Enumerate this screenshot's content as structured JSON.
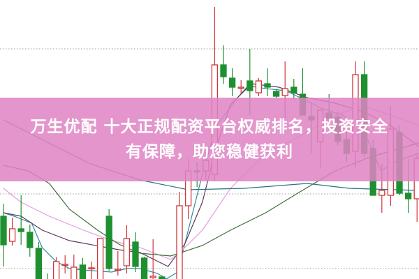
{
  "banner": {
    "title_line1": "万生优配 十大正规配资平台权威排名，投资安全",
    "title_line2": "有保障，助您稳健获利"
  },
  "chart_data": {
    "type": "candlestick",
    "title": "",
    "xlabel": "",
    "ylabel": "",
    "ylim": [
      0,
      400
    ],
    "grid": "horizontal dotted",
    "colors": {
      "up": "#d0363a",
      "down": "#1e9030",
      "grid": "#9a9a9a",
      "banner": "#de84c4"
    },
    "candles_ohlc": [
      [
        90,
        108,
        18,
        49
      ],
      [
        54,
        88,
        48,
        72
      ],
      [
        72,
        120,
        49,
        68
      ],
      [
        67,
        78,
        32,
        45
      ],
      [
        44,
        53,
        -10,
        -8
      ],
      [
        -8,
        8,
        -20,
        -15
      ],
      [
        -5,
        31,
        -10,
        25
      ],
      [
        20,
        34,
        8,
        21
      ],
      [
        -5,
        35,
        -10,
        17
      ],
      [
        20,
        30,
        -10,
        -5
      ],
      [
        15,
        25,
        -5,
        16
      ],
      [
        -5,
        58,
        -10,
        58
      ],
      [
        90,
        100,
        12,
        15
      ],
      [
        13,
        40,
        5,
        14
      ],
      [
        19,
        77,
        8,
        58
      ],
      [
        53,
        67,
        10,
        18
      ],
      [
        30,
        32,
        -10,
        -5
      ],
      [
        2,
        57,
        -10,
        4
      ],
      [
        3,
        5,
        -10,
        -5
      ],
      [
        -10,
        -5,
        -20,
        -8
      ],
      [
        -5,
        125,
        -10,
        105
      ],
      [
        105,
        172,
        86,
        155
      ],
      [
        155,
        168,
        132,
        154
      ],
      [
        155,
        182,
        142,
        170
      ],
      [
        150,
        390,
        140,
        307
      ],
      [
        307,
        335,
        280,
        290
      ],
      [
        288,
        302,
        262,
        275
      ],
      [
        274,
        285,
        265,
        275
      ],
      [
        284,
        330,
        235,
        270
      ],
      [
        267,
        288,
        262,
        284
      ],
      [
        280,
        302,
        262,
        275
      ],
      [
        269,
        272,
        260,
        262
      ],
      [
        263,
        312,
        230,
        273
      ],
      [
        275,
        287,
        257,
        267
      ],
      [
        265,
        302,
        235,
        235
      ],
      [
        233,
        252,
        180,
        228
      ],
      [
        197,
        242,
        160,
        242
      ],
      [
        238,
        265,
        215,
        230
      ],
      [
        232,
        240,
        192,
        197
      ],
      [
        200,
        220,
        168,
        180
      ],
      [
        183,
        312,
        160,
        293
      ],
      [
        293,
        312,
        175,
        180
      ],
      [
        187,
        200,
        120,
        120
      ],
      [
        120,
        165,
        95,
        127
      ],
      [
        120,
        248,
        105,
        215
      ],
      [
        210,
        220,
        120,
        123
      ],
      [
        123,
        172,
        95,
        115
      ],
      [
        115,
        180,
        82,
        173
      ]
    ],
    "moving_averages": [
      {
        "color": "#2a8f9a",
        "points": [
          [
            0,
            95
          ],
          [
            1.2,
            90
          ],
          [
            3.2,
            80
          ],
          [
            4.4,
            45
          ],
          [
            6,
            25
          ],
          [
            7.5,
            15
          ],
          [
            10,
            12
          ],
          [
            12.3,
            10
          ],
          [
            14,
            15
          ],
          [
            15.5,
            15
          ],
          [
            17.5,
            8
          ],
          [
            18.5,
            0
          ],
          [
            19.8,
            10
          ],
          [
            21,
            70
          ],
          [
            22.6,
            150
          ],
          [
            24.2,
            220
          ],
          [
            26.6,
            260
          ],
          [
            27.8,
            277
          ],
          [
            29.8,
            273
          ],
          [
            32.1,
            270
          ],
          [
            33.7,
            260
          ],
          [
            36.1,
            245
          ],
          [
            38.5,
            235
          ],
          [
            40.9,
            215
          ],
          [
            42.9,
            155
          ],
          [
            44.8,
            170
          ],
          [
            47.2,
            180
          ]
        ]
      },
      {
        "color": "#5a3a5e",
        "points": [
          [
            0,
            95
          ],
          [
            2,
            90
          ],
          [
            4.4,
            70
          ],
          [
            7.5,
            55
          ],
          [
            13.1,
            42
          ],
          [
            15.5,
            38
          ],
          [
            18.7,
            18
          ],
          [
            20.6,
            50
          ],
          [
            22.6,
            110
          ],
          [
            24.2,
            190
          ],
          [
            25.8,
            250
          ],
          [
            28.2,
            280
          ],
          [
            31.3,
            275
          ],
          [
            34.5,
            260
          ],
          [
            37.7,
            252
          ],
          [
            40.9,
            240
          ],
          [
            44,
            220
          ],
          [
            47.2,
            190
          ]
        ]
      },
      {
        "color": "#e79be0",
        "points": [
          [
            0,
            130
          ],
          [
            2,
            110
          ],
          [
            5.2,
            90
          ],
          [
            9.1,
            70
          ],
          [
            12.3,
            55
          ],
          [
            15.5,
            45
          ],
          [
            19,
            28
          ],
          [
            20.2,
            40
          ],
          [
            22.6,
            70
          ],
          [
            25.8,
            130
          ],
          [
            29.8,
            180
          ],
          [
            33.7,
            205
          ],
          [
            37.7,
            235
          ],
          [
            40.9,
            248
          ],
          [
            44,
            235
          ],
          [
            47.2,
            220
          ]
        ]
      },
      {
        "color": "#3f6e3a",
        "points": [
          [
            0,
            163
          ],
          [
            2.8,
            155
          ],
          [
            5.2,
            137
          ],
          [
            7.5,
            100
          ],
          [
            10.7,
            70
          ],
          [
            13.1,
            50
          ],
          [
            15.5,
            37
          ],
          [
            19,
            33
          ],
          [
            22.6,
            48
          ],
          [
            25.8,
            70
          ],
          [
            29.8,
            95
          ],
          [
            33.7,
            125
          ],
          [
            37.7,
            155
          ],
          [
            41.7,
            175
          ],
          [
            47.2,
            195
          ]
        ]
      },
      {
        "color": "#2a6f8a",
        "points": [
          [
            0,
            228
          ],
          [
            9.9,
            165
          ],
          [
            15.5,
            142
          ],
          [
            21,
            128
          ],
          [
            27.4,
            130
          ],
          [
            34.5,
            137
          ],
          [
            39.3,
            130
          ],
          [
            47.2,
            127
          ]
        ]
      }
    ],
    "gridline_values": [
      330,
      122,
      15
    ]
  }
}
